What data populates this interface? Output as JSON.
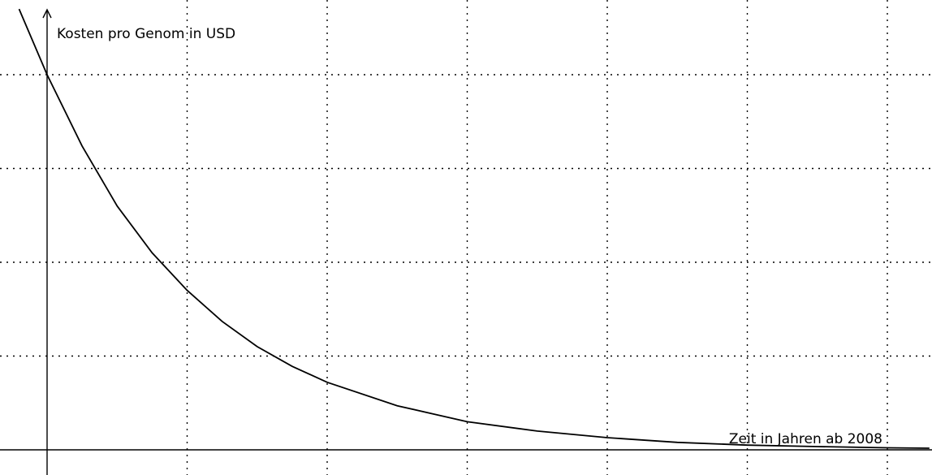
{
  "chart_data": {
    "type": "line",
    "title": "",
    "xlabel": "Zeit in Jahren ab 2008",
    "ylabel": "Kosten pro Genom in USD",
    "xlim": [
      -0.3,
      6.3
    ],
    "ylim": [
      -0.25,
      4.8
    ],
    "x_grid": [
      0,
      1,
      2,
      3,
      4,
      5,
      6
    ],
    "y_grid": [
      0,
      1,
      2,
      3,
      4
    ],
    "grid": true,
    "series": [
      {
        "x": [
          -0.2,
          0,
          0.25,
          0.5,
          0.75,
          1,
          1.25,
          1.5,
          1.75,
          2,
          2.5,
          3,
          3.5,
          4,
          4.5,
          5,
          5.5,
          6,
          6.3
        ],
        "y": [
          4.7,
          4.0,
          3.24,
          2.6,
          2.1,
          1.7,
          1.37,
          1.1,
          0.89,
          0.72,
          0.47,
          0.3,
          0.2,
          0.13,
          0.08,
          0.05,
          0.035,
          0.022,
          0.017
        ]
      }
    ]
  }
}
